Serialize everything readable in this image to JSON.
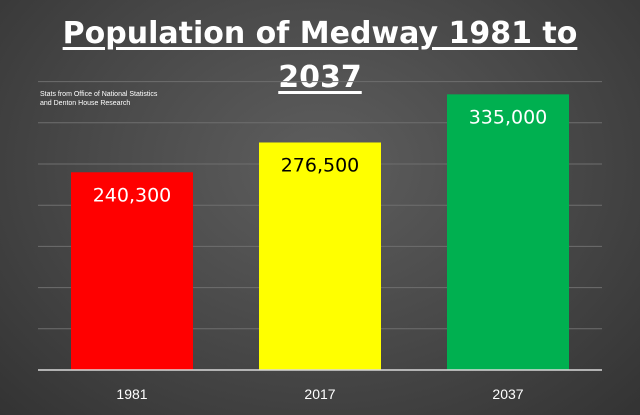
{
  "header": {
    "title_line1": "Population of Medway 1981 to",
    "title_line2": "2037",
    "source_line1": "Stats from Office of National Statistics",
    "source_line2": "and Denton House Research"
  },
  "chart_data": {
    "type": "bar",
    "title": "Population of Medway 1981 to 2037",
    "categories": [
      "1981",
      "2017",
      "2037"
    ],
    "values": [
      240300,
      276500,
      335000
    ],
    "data_labels": [
      "240,300",
      "276,500",
      "335,000"
    ],
    "bar_colors": [
      "#ff0000",
      "#ffff00",
      "#00b050"
    ],
    "label_colors": [
      "#ffffff",
      "#000000",
      "#ffffff"
    ],
    "ylim": [
      0,
      350000
    ],
    "grid": true,
    "legend": "none"
  },
  "colors": {
    "background": "#474747",
    "grid": "#6e6e6e",
    "axis": "#d9d9d9",
    "text": "#ffffff"
  }
}
